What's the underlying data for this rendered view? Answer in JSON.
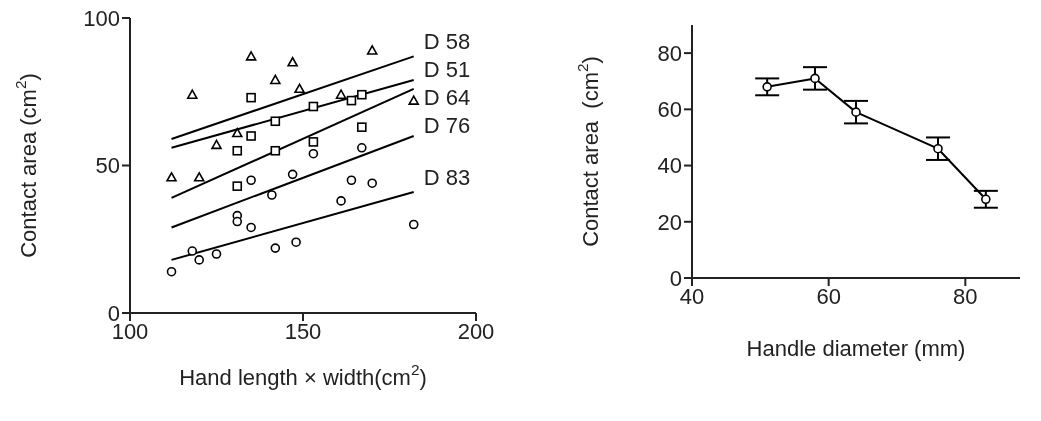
{
  "chart_data": [
    {
      "type": "scatter",
      "xlabel": "Hand length × width(cm$^{2}$)",
      "ylabel": "Contact area (cm$^{2}$)",
      "xlim": [
        100,
        200
      ],
      "xticks": [
        100,
        150,
        200
      ],
      "ylim": [
        0,
        100
      ],
      "yticks": [
        0,
        50,
        100
      ],
      "series": [
        {
          "marker": "triangle",
          "color": "#000000",
          "x": [
            112,
            118,
            120,
            125,
            131,
            135,
            142,
            147,
            149,
            161,
            170,
            182
          ],
          "values": [
            46,
            74,
            46,
            57,
            61,
            87,
            79,
            85,
            76,
            74,
            89,
            72
          ]
        },
        {
          "marker": "square",
          "color": "#000000",
          "x": [
            131,
            135,
            142,
            153,
            167
          ],
          "values": [
            55,
            73,
            65,
            70,
            74
          ]
        },
        {
          "marker": "square",
          "color": "#000000",
          "x": [
            131,
            135,
            142,
            153,
            164,
            167
          ],
          "values": [
            43,
            60,
            55,
            58,
            72,
            63
          ]
        },
        {
          "marker": "circle",
          "color": "#000000",
          "x": [
            131,
            135,
            141,
            153,
            164,
            167
          ],
          "values": [
            33,
            45,
            40,
            54,
            45,
            56
          ]
        },
        {
          "marker": "circle",
          "color": "#000000",
          "x": [
            112,
            118,
            120,
            125,
            131,
            135,
            142,
            147,
            148,
            161,
            170,
            182
          ],
          "values": [
            14,
            21,
            18,
            20,
            31,
            29,
            22,
            47,
            24,
            38,
            44,
            30
          ]
        },
        {
          "type": "line",
          "name": "D 58",
          "color": "#000000",
          "x": [
            112,
            182
          ],
          "values": [
            59,
            87
          ]
        },
        {
          "type": "line",
          "name": "D 51",
          "color": "#000000",
          "x": [
            112,
            182
          ],
          "values": [
            56,
            79
          ]
        },
        {
          "type": "line",
          "name": "D 64",
          "color": "#000000",
          "x": [
            112,
            182
          ],
          "values": [
            39,
            76
          ]
        },
        {
          "type": "line",
          "name": "D 76",
          "color": "#000000",
          "x": [
            112,
            182
          ],
          "values": [
            29,
            60
          ]
        },
        {
          "type": "line",
          "name": "D 83",
          "color": "#000000",
          "x": [
            112,
            182
          ],
          "values": [
            18,
            41
          ]
        }
      ]
    },
    {
      "type": "line",
      "xlabel": "Handle diameter (mm)",
      "ylabel": "Contact area  (cm$^{2}$)",
      "xlim": [
        40,
        88
      ],
      "xticks": [
        40,
        60,
        80
      ],
      "ylim": [
        0,
        90
      ],
      "yticks": [
        0,
        20,
        40,
        60,
        80
      ],
      "marker": "circle",
      "series": [
        {
          "color": "#000000",
          "x": [
            51,
            58,
            64,
            76,
            83
          ],
          "values": [
            68,
            71,
            59,
            46,
            28
          ],
          "errors": [
            3,
            4,
            4,
            4,
            3
          ]
        }
      ]
    }
  ]
}
